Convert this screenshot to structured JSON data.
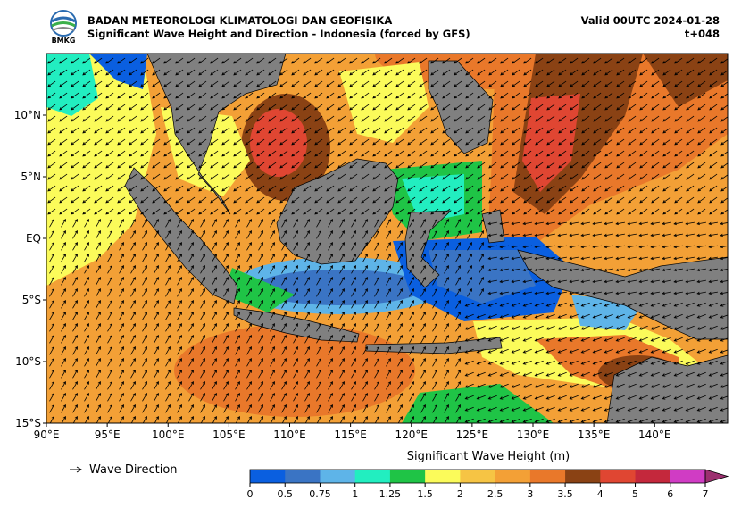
{
  "header": {
    "agency": "BADAN METEOROLOGI KLIMATOLOGI DAN GEOFISIKA",
    "subtitle": "Significant Wave Height and Direction - Indonesia (forced by GFS)",
    "valid": "Valid 00UTC 2024-01-28",
    "lead": "t+048",
    "logo_text": "BMKG"
  },
  "map": {
    "lon_range": [
      90,
      146
    ],
    "lat_range": [
      -15,
      15
    ],
    "lon_ticks": [
      {
        "value": 90,
        "label": "90°E"
      },
      {
        "value": 95,
        "label": "95°E"
      },
      {
        "value": 100,
        "label": "100°E"
      },
      {
        "value": 105,
        "label": "105°E"
      },
      {
        "value": 110,
        "label": "110°E"
      },
      {
        "value": 115,
        "label": "115°E"
      },
      {
        "value": 120,
        "label": "120°E"
      },
      {
        "value": 125,
        "label": "125°E"
      },
      {
        "value": 130,
        "label": "130°E"
      },
      {
        "value": 135,
        "label": "135°E"
      },
      {
        "value": 140,
        "label": "140°E"
      }
    ],
    "lat_ticks": [
      {
        "value": -15,
        "label": "15°S"
      },
      {
        "value": -10,
        "label": "10°S"
      },
      {
        "value": -5,
        "label": "5°S"
      },
      {
        "value": 0,
        "label": "EQ"
      },
      {
        "value": 5,
        "label": "5°N"
      },
      {
        "value": 10,
        "label": "10°N"
      }
    ]
  },
  "legend": {
    "label": "Wave Direction"
  },
  "colorbar": {
    "label": "Significant Wave Height (m)",
    "levels": [
      0,
      0.5,
      0.75,
      1,
      1.25,
      1.5,
      2,
      2.5,
      3,
      3.5,
      4,
      5,
      6,
      7
    ],
    "colors": [
      "#0a5fe0",
      "#3a74c4",
      "#5eb4e8",
      "#22eec0",
      "#1fc446",
      "#fbfb5a",
      "#f6c444",
      "#f3a036",
      "#e9782a",
      "#8a4214",
      "#e04632",
      "#c4283c",
      "#d03cc4"
    ],
    "extend_color": "#9c3070"
  }
}
